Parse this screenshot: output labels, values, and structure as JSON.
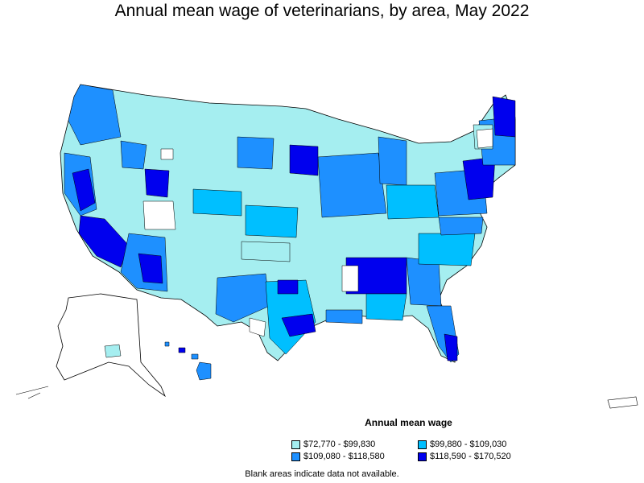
{
  "title": "Annual mean wage of veterinarians, by area, May 2022",
  "colors": {
    "c1": "#a5eef0",
    "c2": "#00bfff",
    "c3": "#1e90ff",
    "c4": "#0000ee",
    "blank": "#ffffff",
    "border": "#000000"
  },
  "legend": {
    "title": "Annual mean wage",
    "items": [
      {
        "label": "$72,770 - $99,830",
        "color": "#a5eef0"
      },
      {
        "label": "$99,880 - $109,030",
        "color": "#00bfff"
      },
      {
        "label": "$109,080 - $118,580",
        "color": "#1e90ff"
      },
      {
        "label": "$118,590 - $170,520",
        "color": "#0000ee"
      }
    ]
  },
  "footnote": "Blank areas indicate data not available."
}
